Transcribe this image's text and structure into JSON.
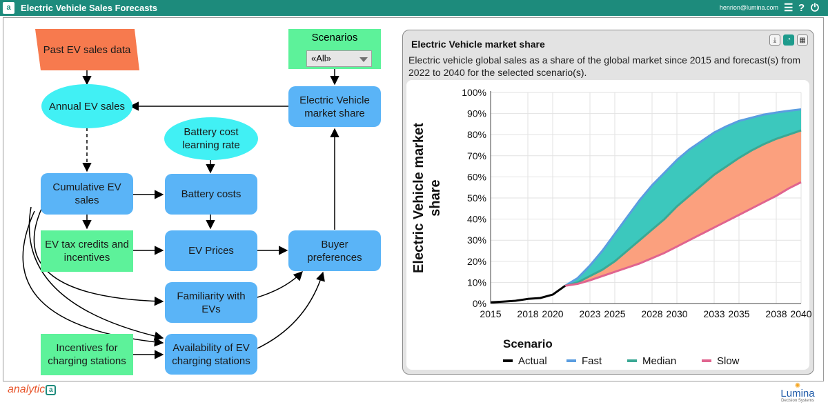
{
  "app": {
    "title": "Electric Vehicle Sales Forecasts",
    "user_email": "henrion@lumina.com",
    "logo_letter": "a",
    "menu_icon": "hamburger-icon",
    "help_icon": "help-icon",
    "power_icon": "power-icon"
  },
  "diagram": {
    "nodes": {
      "past_sales": "Past EV sales data",
      "annual_sales": "Annual EV sales",
      "cumulative_sales": "Cumulative EV sales",
      "tax_credits": "EV tax credits and incentives",
      "incentives_charging": "Incentives for charging stations",
      "battery_rate": "Battery cost learning rate",
      "battery_costs": "Battery costs",
      "ev_prices": "EV Prices",
      "familiarity": "Familiarity with EVs",
      "availability": "Availability of EV charging stations",
      "buyer_prefs": "Buyer preferences",
      "market_share": "Electric Vehicle market share"
    },
    "scenarios": {
      "label": "Scenarios",
      "selected": "«All»"
    }
  },
  "chart_panel": {
    "title": "Electric Vehicle market share",
    "description": "Electric vehicle global sales as a share of the global market since 2015 and forecast(s) from 2022 to 2040 for the selected scenario(s).",
    "toolbar_icons": [
      "download-icon",
      "chart-view-icon",
      "table-view-icon"
    ]
  },
  "chart_data": {
    "type": "area",
    "ylabel": "Electric Vehicle market share",
    "xlim": [
      2015,
      2040
    ],
    "ylim": [
      0,
      100
    ],
    "grid": true,
    "x_ticks": [
      "2015",
      "2018",
      "2020",
      "2023",
      "2025",
      "2028",
      "2030",
      "2033",
      "2035",
      "2038",
      "2040"
    ],
    "y_ticks": [
      "0%",
      "10%",
      "20%",
      "30%",
      "40%",
      "50%",
      "60%",
      "70%",
      "80%",
      "90%",
      "100%"
    ],
    "legend_title": "Scenario",
    "legend_position": "bottom",
    "series": [
      {
        "name": "Actual",
        "color": "#000000",
        "x": [
          2015,
          2016,
          2017,
          2018,
          2019,
          2020,
          2021
        ],
        "y": [
          0.6,
          0.9,
          1.3,
          2.2,
          2.6,
          4.2,
          8.4
        ]
      },
      {
        "name": "Fast",
        "color": "#5a9de0",
        "x": [
          2021,
          2022,
          2023,
          2024,
          2025,
          2026,
          2027,
          2028,
          2029,
          2030,
          2031,
          2032,
          2033,
          2034,
          2035,
          2036,
          2037,
          2038,
          2039,
          2040
        ],
        "y": [
          8.4,
          12,
          18,
          25,
          33,
          41,
          49,
          56,
          62,
          68,
          73,
          77,
          81,
          84,
          86.5,
          88,
          89.5,
          90.5,
          91.3,
          92
        ]
      },
      {
        "name": "Median",
        "color": "#3aa894",
        "x": [
          2021,
          2022,
          2023,
          2024,
          2025,
          2026,
          2027,
          2028,
          2029,
          2030,
          2031,
          2032,
          2033,
          2034,
          2035,
          2036,
          2037,
          2038,
          2039,
          2040
        ],
        "y": [
          8.4,
          10,
          13,
          16,
          20,
          25,
          30,
          35,
          40,
          46,
          51,
          56,
          61,
          65,
          69,
          72.5,
          75.5,
          78,
          80,
          82
        ]
      },
      {
        "name": "Slow",
        "color": "#e0648f",
        "x": [
          2021,
          2022,
          2023,
          2024,
          2025,
          2026,
          2027,
          2028,
          2029,
          2030,
          2031,
          2032,
          2033,
          2034,
          2035,
          2036,
          2037,
          2038,
          2039,
          2040
        ],
        "y": [
          8.4,
          9.3,
          11,
          13,
          15,
          17,
          19,
          21.5,
          24,
          27,
          30,
          33,
          36,
          39,
          42,
          45,
          48,
          51,
          54.5,
          57.5
        ]
      }
    ],
    "bands": [
      {
        "between": [
          "Fast",
          "Median"
        ],
        "color": "#3cc8bd"
      },
      {
        "between": [
          "Median",
          "Slow"
        ],
        "color": "#fba07e"
      }
    ]
  },
  "footer": {
    "brand_left": "analytic",
    "brand_right": "Lumina",
    "brand_right_sub": "Decision Systems"
  }
}
